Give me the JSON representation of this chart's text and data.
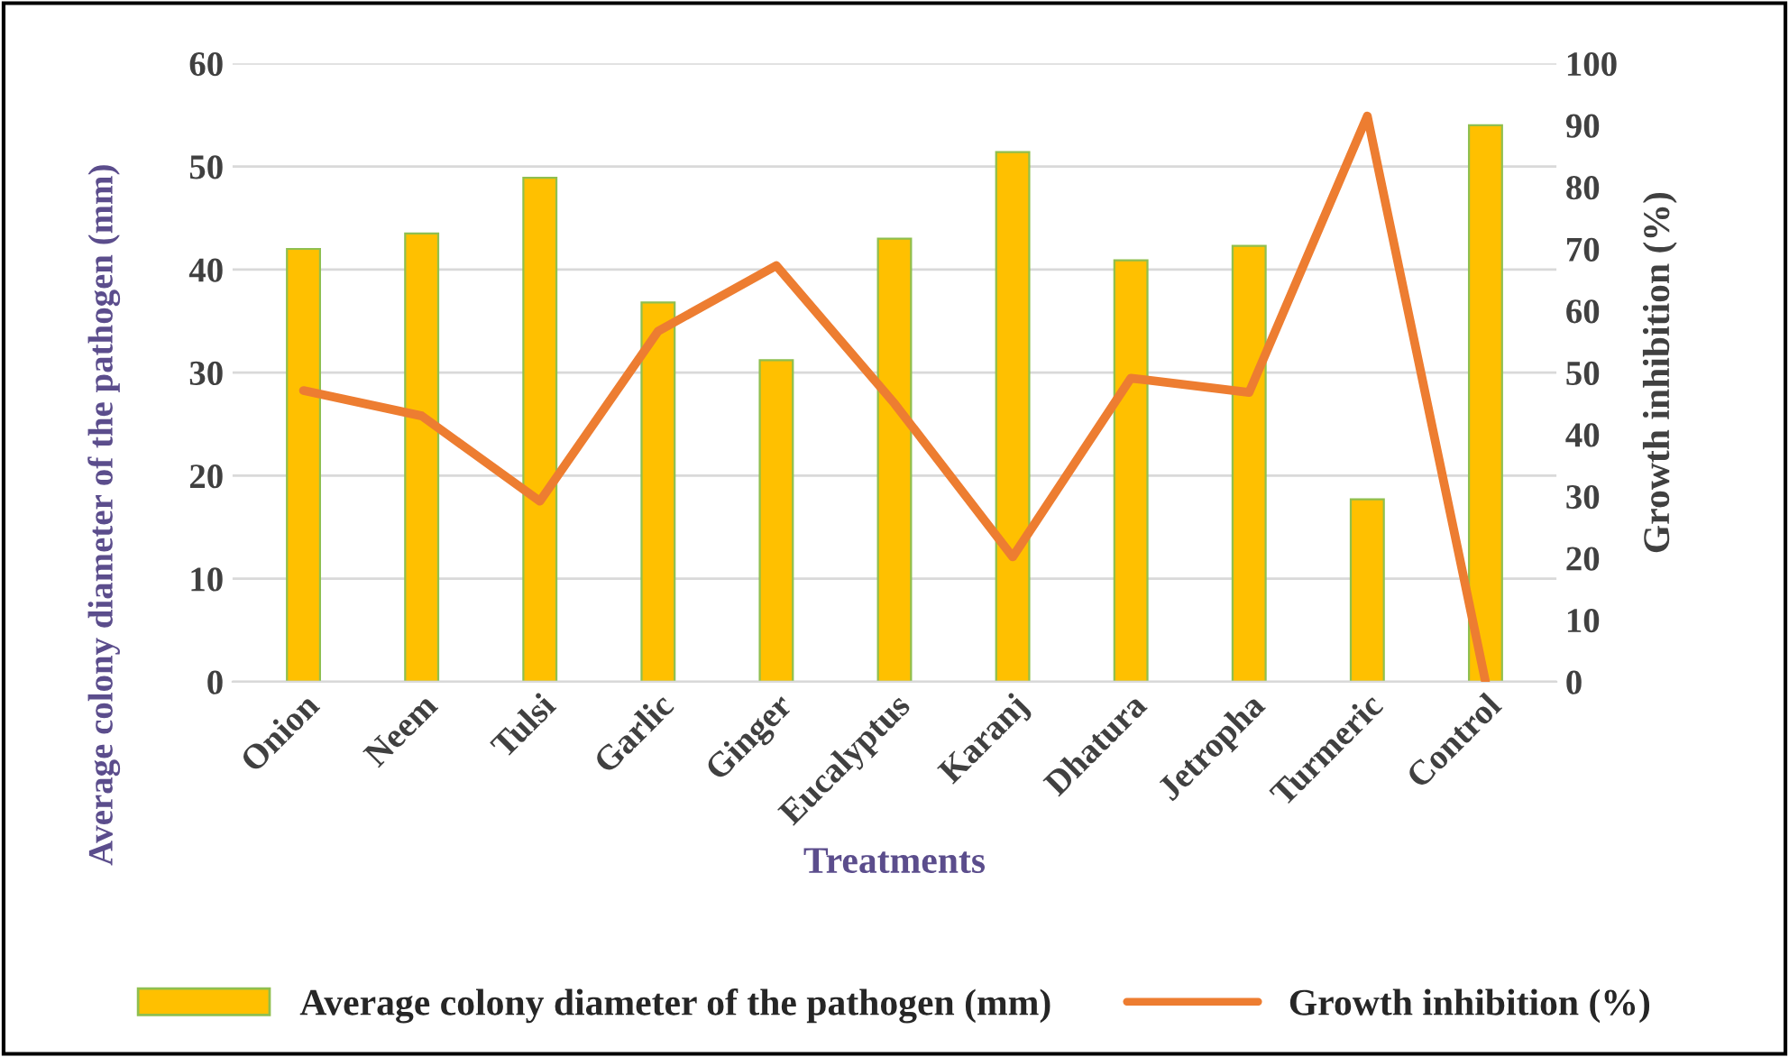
{
  "chart_data": {
    "type": "bar",
    "xlabel": "Treatments",
    "ylabel": "Average colony diameter of the pathogen (mm)",
    "y2label": "Growth inhibition (%)",
    "categories": [
      "Onion",
      "Neem",
      "Tulsi",
      "Garlic",
      "Ginger",
      "Eucalyptus",
      "Karanj",
      "Dhatura",
      "Jetropha",
      "Turmeric",
      "Control"
    ],
    "series": [
      {
        "name": "Average colony diameter of the pathogen (mm)",
        "color": "#ffc000",
        "values": [
          42,
          43.5,
          48.9,
          36.8,
          31.2,
          43,
          51.4,
          40.9,
          42.3,
          17.7,
          54
        ]
      },
      {
        "name": "Growth inhibition (%)",
        "type": "line",
        "axis": "y2",
        "color": "#ed7d31",
        "values": [
          47.1,
          43,
          29.2,
          56.7,
          67.3,
          45,
          20.2,
          49.1,
          46.8,
          91.5,
          0
        ]
      }
    ],
    "ylim": [
      0,
      60
    ],
    "yticks": [
      0,
      10,
      20,
      30,
      40,
      50,
      60
    ],
    "y2lim": [
      0,
      100
    ],
    "y2ticks": [
      0,
      10,
      20,
      30,
      40,
      50,
      60,
      70,
      80,
      90,
      100
    ],
    "grid": "y",
    "legend": "bottom",
    "marker": "none",
    "line_style": "solid"
  }
}
